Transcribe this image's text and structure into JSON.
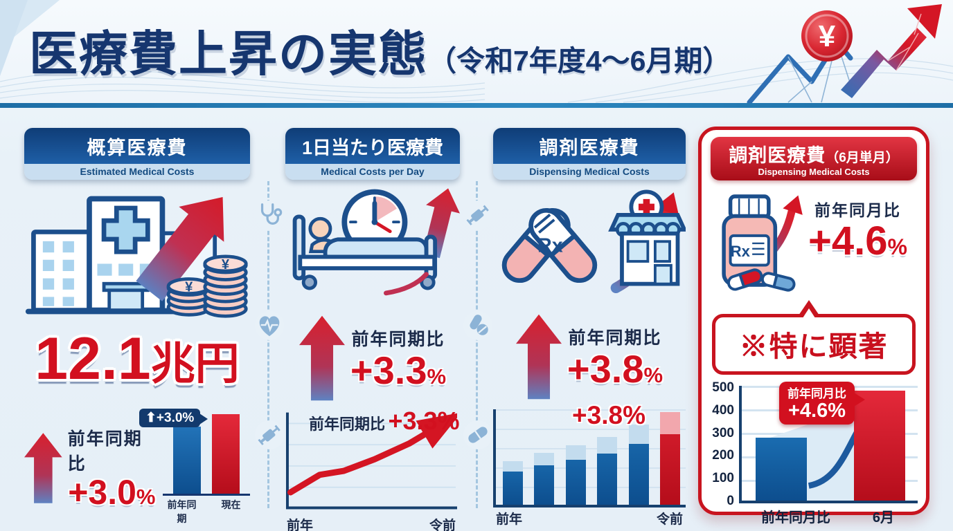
{
  "header": {
    "title": "医療費上昇の実態",
    "period": "（令和7年度4〜6月期）",
    "coin_symbol": "¥"
  },
  "columns": [
    {
      "title": "概算医療費",
      "subtitle_en": "Estimated Medical Costs",
      "main_value": "12.1",
      "main_unit": "兆円",
      "yoy_label": "前年同期比",
      "yoy_value": "+3.0",
      "yoy_unit": "%",
      "badge": "⬆+3.0%"
    },
    {
      "title": "1日当たり医療費",
      "subtitle_en": "Medical Costs per Day",
      "yoy_label": "前年同期比",
      "yoy_value": "+3.3",
      "yoy_unit": "%",
      "chart_annotation_label": "前年同期比",
      "chart_annotation_value": "+3.3%",
      "x_left": "前年",
      "x_right": "令前"
    },
    {
      "title": "調剤医療費",
      "subtitle_en": "Dispensing Medical Costs",
      "yoy_label": "前年同期比",
      "yoy_value": "+3.8",
      "yoy_unit": "%",
      "chart_annotation": "+3.8%",
      "x_left": "前年",
      "x_right": "令前"
    },
    {
      "title": "調剤医療費",
      "title_note": "（6月単月）",
      "subtitle_en": "Dispensing Medical Costs",
      "yoy_label": "前年同月比",
      "yoy_value": "+4.6",
      "yoy_unit": "%",
      "callout": "※特に顕著",
      "chart_badge_label": "前年同月比",
      "chart_badge_value": "+4.6%"
    }
  ],
  "icons": {
    "header_coin": "yen-coin",
    "header_arrow": "growth-arrow",
    "rx_label": "Rx",
    "divider_left": [
      "stethoscope",
      "heart-pulse",
      "syringe"
    ],
    "divider_right": [
      "syringe",
      "pills",
      "capsule"
    ],
    "column_illustrations": [
      "hospital-coins",
      "patient-bed-clock",
      "capsules-pharmacy",
      "pill-bottle"
    ]
  },
  "colors": {
    "navy": "#16366f",
    "red": "#d2101f",
    "header_gradient_top": "#0f3d77",
    "header_gradient_bottom": "#1e5fa7",
    "light_strip": "#c9def0",
    "bar_blue": "#0d4e8e",
    "bar_blue_cap": "#c3dcee",
    "bar_red": "#b50d1b",
    "bar_red_cap": "#f2a7ad",
    "divider_icon": "#8cb3d6",
    "background": "#e8f1f8"
  },
  "chart_data": [
    {
      "id": "estimated-mini-bar",
      "type": "bar",
      "title": "概算医療費 前年同期比",
      "categories": [
        "前年同期",
        "現在"
      ],
      "values": [
        84,
        100
      ],
      "unit": "relative-index",
      "annotation": "⬆+3.0%",
      "legend": "off",
      "grid": "off"
    },
    {
      "id": "per-day-line",
      "type": "line",
      "title": "1日当たり医療費 推移",
      "x_labels": [
        "前年",
        "令前"
      ],
      "points_pct": [
        [
          3,
          18
        ],
        [
          20,
          36
        ],
        [
          34,
          40
        ],
        [
          52,
          52
        ],
        [
          72,
          68
        ],
        [
          93,
          90
        ]
      ],
      "annotation_label": "前年同期比",
      "annotation_value": "+3.3%",
      "grid": "horizontal"
    },
    {
      "id": "dispensing-bar",
      "type": "bar",
      "title": "調剤医療費 推移",
      "x_labels": [
        "前年",
        "令前"
      ],
      "values": [
        46,
        54,
        62,
        71,
        84,
        97
      ],
      "cap_fraction": 0.24,
      "highlight_index": 5,
      "annotation": "+3.8%",
      "grid": "horizontal"
    },
    {
      "id": "dispensing-june-bar",
      "type": "bar",
      "title": "調剤医療費（6月単月）",
      "categories": [
        "前年同月比",
        "6月"
      ],
      "values": [
        275,
        480
      ],
      "ylim": [
        0,
        500
      ],
      "yticks": [
        0,
        100,
        200,
        300,
        400,
        500
      ],
      "badge_label": "前年同月比",
      "badge_value": "+4.6%",
      "grid": "horizontal"
    }
  ]
}
